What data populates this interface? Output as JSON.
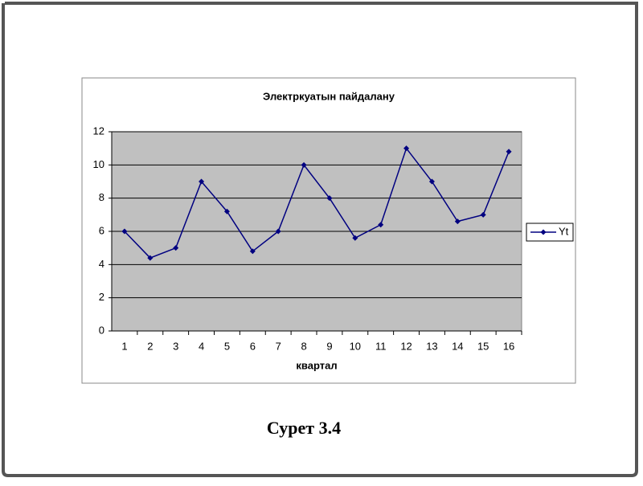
{
  "chart_data": {
    "type": "line",
    "title": "Электркуатын пайдалану",
    "x_label": "квартал",
    "categories": [
      "1",
      "2",
      "3",
      "4",
      "5",
      "6",
      "7",
      "8",
      "9",
      "10",
      "11",
      "12",
      "13",
      "14",
      "15",
      "16"
    ],
    "series": [
      {
        "name": "Yt",
        "color": "#000080",
        "values": [
          6,
          4.4,
          5,
          9,
          7.2,
          4.8,
          6,
          10,
          8,
          5.6,
          6.4,
          11,
          9,
          6.6,
          7,
          10.8
        ]
      }
    ],
    "ylim": [
      0,
      12
    ],
    "yticks": [
      0,
      2,
      4,
      6,
      8,
      10,
      12
    ],
    "grid": true,
    "legend": "right"
  },
  "caption": "Сурет 3.4"
}
